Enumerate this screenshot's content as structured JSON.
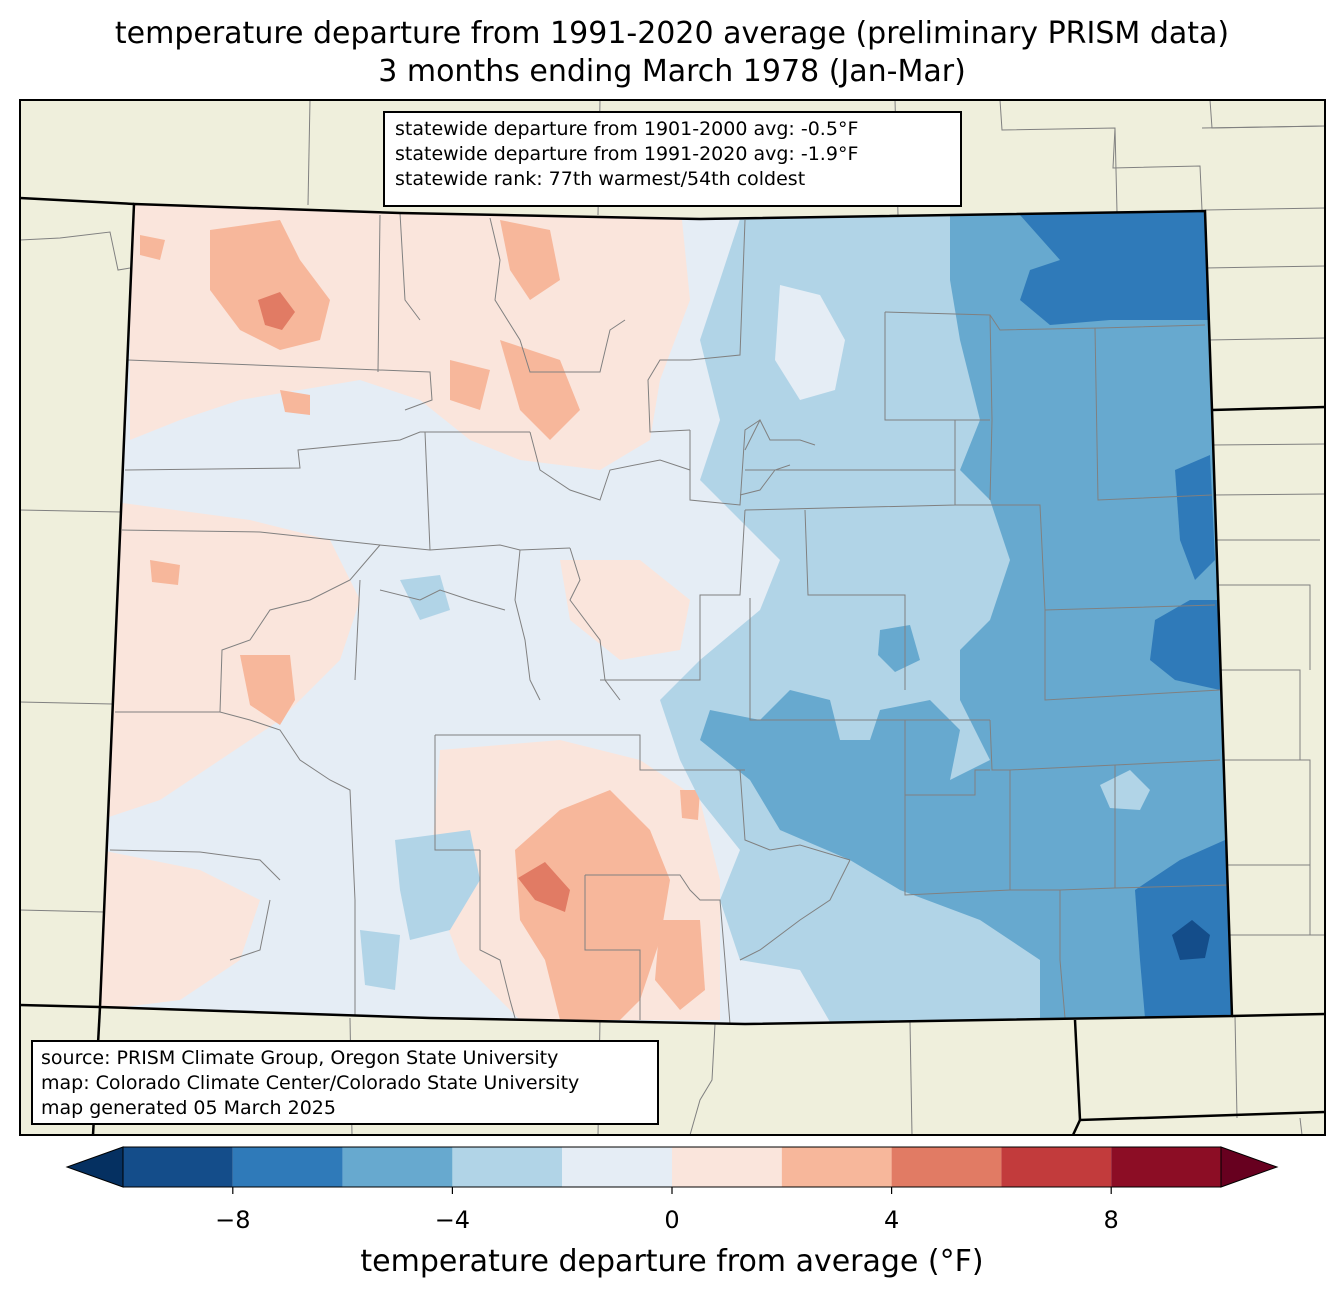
{
  "title_line1": "temperature departure from 1991-2020 average (preliminary PRISM data)",
  "title_line2": "3 months ending March 1978 (Jan-Mar)",
  "stats": {
    "line1": "statewide departure from 1901-2000 avg: -0.5°F",
    "line2": "statewide departure from 1991-2020 avg: -1.9°F",
    "line3": "statewide rank: 77th warmest/54th coldest"
  },
  "source": {
    "line1": "source: PRISM Climate Group, Oregon State University",
    "line2": "map: Colorado Climate Center/Colorado State University",
    "line3": "map generated 05 March 2025"
  },
  "colorbar": {
    "label": "temperature departure from average (°F)",
    "ticks": [
      "−8",
      "−4",
      "0",
      "4",
      "8"
    ],
    "bins": [
      -10,
      -8,
      -6,
      -4,
      -2,
      0,
      2,
      4,
      6,
      8,
      10
    ],
    "colors": [
      "#144d8a",
      "#2f7ab9",
      "#67a9cf",
      "#b1d4e7",
      "#e5edf5",
      "#fae5dc",
      "#f7b79b",
      "#e17b64",
      "#c23b3c",
      "#8c0d25"
    ],
    "under_color": "#053061",
    "over_color": "#67001f"
  },
  "colors": {
    "background_land": "#efefdc",
    "county_lines": "#808080",
    "state_lines": "#000000"
  }
}
